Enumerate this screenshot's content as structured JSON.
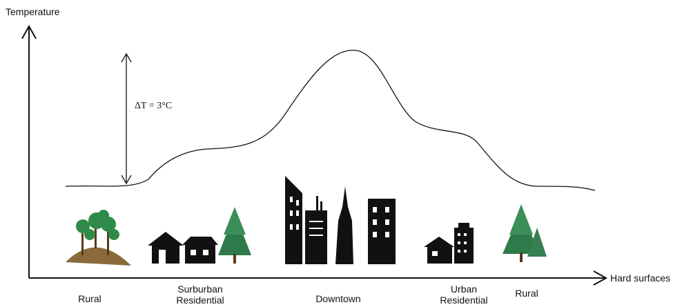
{
  "axes": {
    "y_label": "Temperature",
    "x_label": "Hard surfaces"
  },
  "annotation": "ΔT = 3°C",
  "zones": [
    {
      "label": [
        "Rural"
      ]
    },
    {
      "label": [
        "Surburban",
        "Residential"
      ]
    },
    {
      "label": [
        "Downtown"
      ]
    },
    {
      "label": [
        "Urban",
        "Residential"
      ]
    },
    {
      "label": [
        "Rural"
      ]
    }
  ]
}
